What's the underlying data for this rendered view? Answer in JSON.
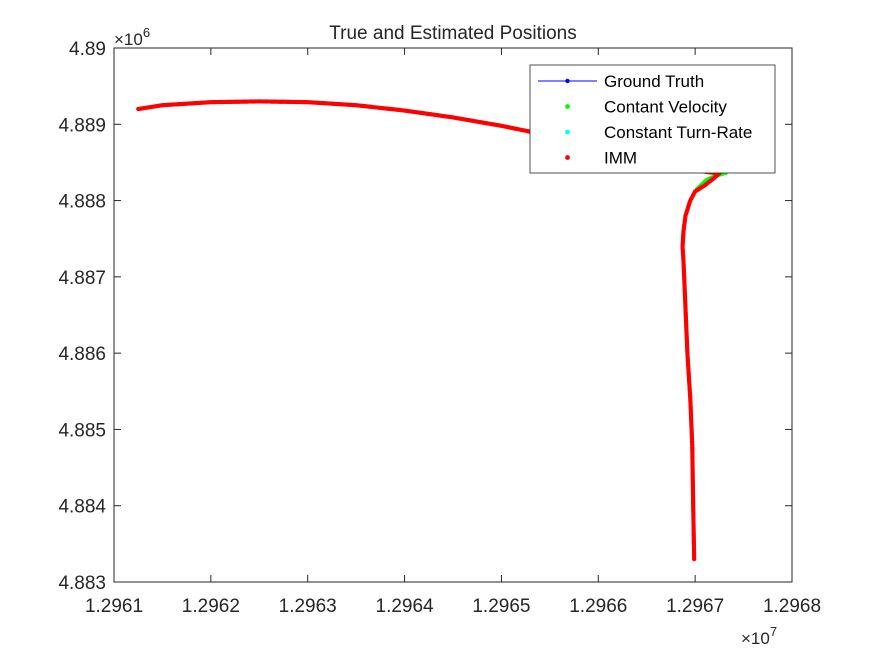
{
  "chart_data": {
    "type": "scatter",
    "title": "True and Estimated Positions",
    "xlabel": "",
    "ylabel": "",
    "x_multiplier_label": {
      "base": "×10",
      "exp": "7"
    },
    "y_multiplier_label": {
      "base": "×10",
      "exp": "6"
    },
    "xlim": [
      1.2961,
      1.2968
    ],
    "ylim": [
      4.883,
      4.89
    ],
    "x_ticks": [
      "1.2961",
      "1.2962",
      "1.2963",
      "1.2964",
      "1.2965",
      "1.2966",
      "1.2967",
      "1.2968"
    ],
    "y_ticks": [
      "4.883",
      "4.884",
      "4.885",
      "4.886",
      "4.887",
      "4.888",
      "4.889",
      "4.89"
    ],
    "grid": false,
    "legend_position": "top-right",
    "legend": [
      {
        "name": "Ground Truth",
        "color": "#0000ff",
        "style": "line-marker"
      },
      {
        "name": "Contant Velocity",
        "color": "#00ff00",
        "style": "dot"
      },
      {
        "name": "Constant Turn-Rate",
        "color": "#00ffff",
        "style": "dot"
      },
      {
        "name": "IMM",
        "color": "#ff0000",
        "style": "dot"
      }
    ],
    "trajectory": {
      "x": [
        1.296125,
        1.29615,
        1.2962,
        1.29625,
        1.2963,
        1.29635,
        1.2964,
        1.29645,
        1.2965,
        1.29655,
        1.29658,
        1.29661,
        1.29664,
        1.296665,
        1.29669,
        1.296705,
        1.296715,
        1.296725
      ],
      "y": [
        4.8892,
        4.88925,
        4.88929,
        4.8893,
        4.88929,
        4.88925,
        4.88918,
        4.88909,
        4.88898,
        4.88885,
        4.88876,
        4.88866,
        4.88856,
        4.88848,
        4.88842,
        4.88839,
        4.88837,
        4.88836
      ]
    },
    "trajectory_down": {
      "x": [
        1.296725,
        1.29672,
        1.29671,
        1.2967,
        1.296695,
        1.29669,
        1.296688,
        1.296687,
        1.296688,
        1.29669,
        1.296692,
        1.296695,
        1.296697,
        1.296698,
        1.296699
      ],
      "y": [
        4.88836,
        4.8883,
        4.8882,
        4.88812,
        4.888,
        4.8878,
        4.8876,
        4.8874,
        4.8872,
        4.8866,
        4.886,
        4.8854,
        4.8848,
        4.884,
        4.8833
      ]
    },
    "cv_offset_segment": {
      "x": [
        1.2967,
        1.29671,
        1.29672,
        1.29673
      ],
      "y": [
        4.88814,
        4.88826,
        4.88832,
        4.88836
      ]
    }
  }
}
